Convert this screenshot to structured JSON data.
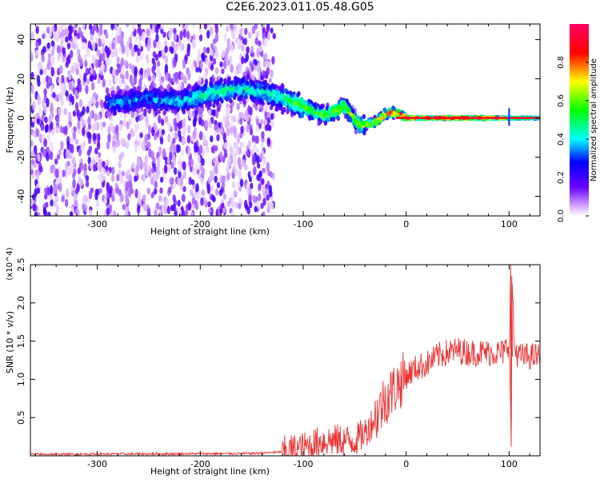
{
  "title": "C2E6.2023.011.05.48.G05",
  "chart_data": [
    {
      "type": "heatmap",
      "xlabel": "Height of straight line (km)",
      "ylabel": "Frequency (Hz)",
      "xlim": [
        -365,
        130
      ],
      "ylim": [
        -50,
        48
      ],
      "x_ticks": [
        -300,
        -200,
        -100,
        0,
        100
      ],
      "y_ticks": [
        -40,
        -20,
        0,
        20,
        40
      ],
      "colorbar": {
        "label": "Normalized spectral amplitude",
        "range": [
          0,
          1
        ],
        "ticks": [
          0.0,
          0.2,
          0.4,
          0.6,
          0.8
        ],
        "colormap": "rainbow (white-violet-blue-cyan-green-yellow-red-magenta)"
      },
      "ridge": {
        "x": [
          -280,
          -250,
          -220,
          -190,
          -160,
          -130,
          -100,
          -80,
          -60,
          -45,
          -30,
          -20,
          -10,
          0,
          20,
          50,
          80,
          100,
          130
        ],
        "y": [
          8,
          10,
          8,
          13,
          15,
          12,
          6,
          1,
          6,
          -4,
          -2,
          2,
          3,
          0,
          0,
          0,
          0,
          0,
          0
        ],
        "peak_amplitude": [
          0.35,
          0.35,
          0.4,
          0.5,
          0.45,
          0.45,
          0.6,
          0.6,
          0.7,
          0.65,
          0.75,
          0.9,
          0.9,
          0.95,
          0.95,
          0.95,
          0.9,
          0.6,
          0.5
        ]
      },
      "noise_region_x": [
        -365,
        -128
      ]
    },
    {
      "type": "line",
      "xlabel": "Height of straight line (km)",
      "ylabel": "SNR (10 * v/v)",
      "y_multiplier": "(x10^4)",
      "xlim": [
        -365,
        130
      ],
      "ylim": [
        0,
        2.5
      ],
      "x_ticks": [
        -300,
        -200,
        -100,
        0,
        100
      ],
      "y_ticks": [
        0.5,
        1.0,
        1.5,
        2.0,
        2.5
      ],
      "color": "#ee3333",
      "series": [
        {
          "x": [
            -365,
            -150,
            -120,
            -100,
            -80,
            -60,
            -50,
            -40,
            -30,
            -20,
            -10,
            0,
            10,
            20,
            30,
            40,
            50,
            60,
            80,
            95,
            100,
            102,
            103,
            105,
            110,
            120,
            130
          ],
          "y": [
            0.02,
            0.03,
            0.05,
            0.1,
            0.2,
            0.2,
            0.2,
            0.3,
            0.5,
            0.75,
            0.9,
            1.05,
            1.15,
            1.2,
            1.3,
            1.35,
            1.38,
            1.35,
            1.35,
            1.35,
            1.5,
            0.2,
            2.3,
            1.4,
            1.3,
            1.3,
            1.3
          ]
        }
      ]
    }
  ]
}
